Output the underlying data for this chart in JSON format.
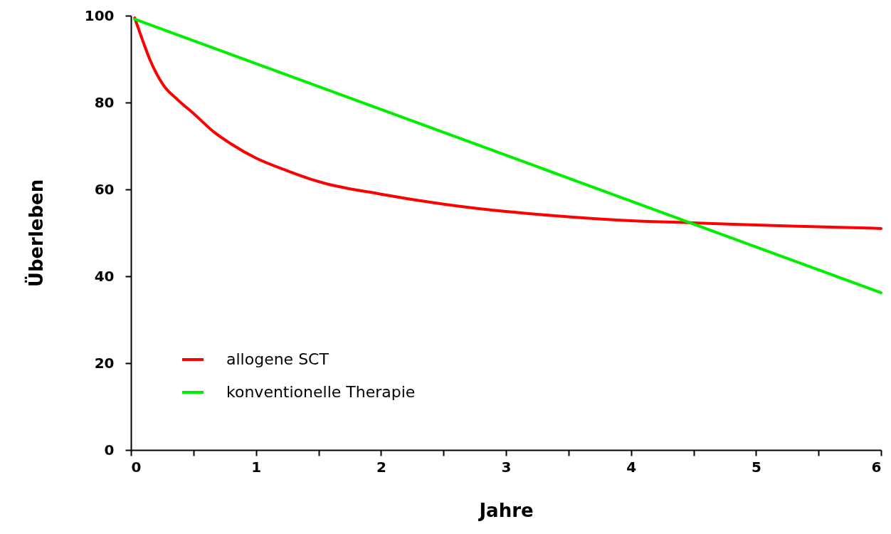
{
  "chart_data": {
    "type": "line",
    "xlabel": "Jahre",
    "ylabel": "Überleben",
    "xlim": [
      0,
      6
    ],
    "ylim": [
      0,
      100
    ],
    "xticks": [
      0,
      {
        "value": 0.5,
        "label": null
      },
      1,
      {
        "value": 1.5,
        "label": null
      },
      2,
      {
        "value": 2.5,
        "label": null
      },
      3,
      {
        "value": 3.5,
        "label": null
      },
      4,
      {
        "value": 4.5,
        "label": null
      },
      5,
      {
        "value": 5.5,
        "label": null
      },
      6
    ],
    "yticks": [
      0,
      20,
      40,
      60,
      80,
      100
    ],
    "grid": false,
    "legend": "bottom left",
    "marker": "none",
    "line_style": "solid",
    "series": [
      {
        "name": "allogene SCT",
        "color": "#ff0000",
        "x": [
          0.03,
          0.1,
          0.15,
          0.26,
          0.375,
          0.5,
          0.66,
          0.8,
          1.0,
          1.25,
          1.5,
          2.0,
          2.5,
          3.0,
          3.5,
          4.0,
          4.5,
          5.0,
          5.5,
          6.0
        ],
        "values": [
          99.5,
          93.8,
          90,
          84,
          80.6,
          77.5,
          73.3,
          70.5,
          67.2,
          64.3,
          61.8,
          58.9,
          56.6,
          54.9,
          53.7,
          52.8,
          52.3,
          51.8,
          51.4,
          51.0
        ]
      },
      {
        "name": "konventionelle Therapie",
        "color": "#00ee00",
        "x": [
          0.03,
          6.0
        ],
        "values": [
          99.2,
          36.2
        ]
      }
    ]
  }
}
